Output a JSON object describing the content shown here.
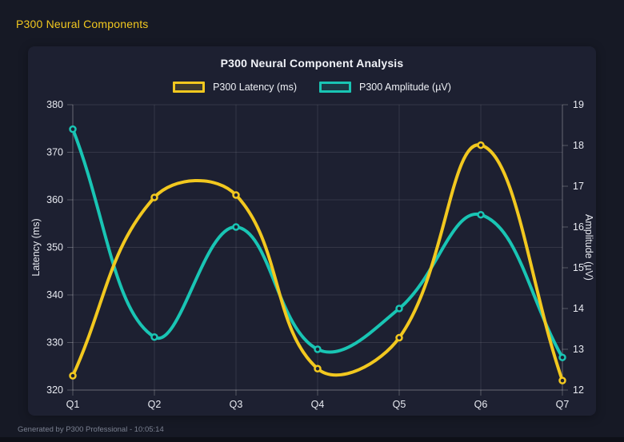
{
  "header": {
    "title": "P300 Neural Components"
  },
  "footer": {
    "text": "Generated by P300 Professional - 10:05:14"
  },
  "theme": {
    "background": "#161925",
    "panel": "#1d2031",
    "accent_yellow": "#f2c81f",
    "accent_teal": "#19c5b4",
    "tick_text": "#e8eaf1",
    "muted_text": "#7a8090",
    "gridline": "rgba(255,255,255,0.10)",
    "axis_border": "rgba(255,255,255,0.25)"
  },
  "chart_data": {
    "type": "line",
    "title": "P300 Neural Component Analysis",
    "categories": [
      "Q1",
      "Q2",
      "Q3",
      "Q4",
      "Q5",
      "Q6",
      "Q7"
    ],
    "series": [
      {
        "name": "P300 Latency (ms)",
        "axis": "left",
        "color": "#f2c81f",
        "values": [
          323,
          360.5,
          361,
          324.5,
          331,
          371.5,
          322
        ]
      },
      {
        "name": "P300 Amplitude (µV)",
        "axis": "right",
        "color": "#19c5b4",
        "values": [
          18.4,
          13.3,
          16,
          13,
          14,
          16.3,
          12.8
        ]
      }
    ],
    "left_axis": {
      "label": "Latency (ms)",
      "min": 320,
      "max": 380,
      "step": 10
    },
    "right_axis": {
      "label": "Amplitude (µV)",
      "min": 12,
      "max": 19,
      "step": 1
    },
    "grid": true,
    "legend_position": "top",
    "line_tension": 0.4
  }
}
